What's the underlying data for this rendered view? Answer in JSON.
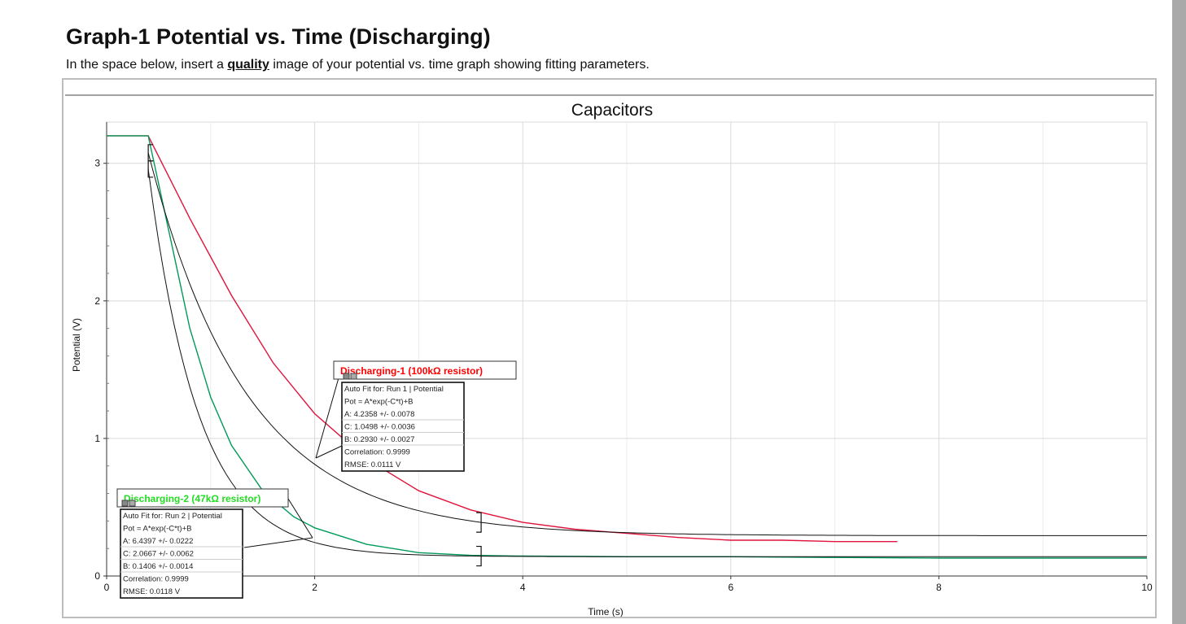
{
  "header": {
    "title": "Graph-1  Potential vs. Time (Discharging)",
    "instruction_before": "In the space below, insert a ",
    "instruction_bold": "quality",
    "instruction_after": " image of your potential vs. time graph showing fitting parameters."
  },
  "colors": {
    "run1": "#e0143c",
    "run2": "#009a5a",
    "fit": "#111111",
    "grid": "#d9d9d9",
    "label1": "#ff0000",
    "label2": "#22dd22",
    "sidebar": "#a9a9a9"
  },
  "chart_data": {
    "type": "line",
    "title": "Capacitors",
    "xlabel": "Time (s)",
    "ylabel": "Potential (V)",
    "xlim": [
      0,
      10
    ],
    "ylim": [
      0,
      3.3
    ],
    "x_ticks": [
      "0",
      "2",
      "4",
      "6",
      "8",
      "10"
    ],
    "y_ticks": [
      "0",
      "1",
      "2",
      "3"
    ],
    "grid": true,
    "series": [
      {
        "name": "Run 1",
        "x": [
          0.0,
          0.4,
          0.8,
          1.2,
          1.6,
          2.0,
          2.5,
          3.0,
          3.5,
          4.0,
          4.5,
          5.0,
          5.5,
          6.0,
          6.5,
          7.0,
          7.6
        ],
        "y": [
          3.2,
          3.2,
          2.6,
          2.04,
          1.55,
          1.18,
          0.85,
          0.62,
          0.48,
          0.39,
          0.34,
          0.31,
          0.28,
          0.26,
          0.26,
          0.25,
          0.25
        ]
      },
      {
        "name": "Run 2",
        "x": [
          0.0,
          0.4,
          0.6,
          0.8,
          1.0,
          1.2,
          1.5,
          1.8,
          2.0,
          2.5,
          3.0,
          3.5,
          4.0,
          5.0,
          6.0,
          7.0,
          8.0,
          9.0,
          10.0
        ],
        "y": [
          3.2,
          3.2,
          2.5,
          1.8,
          1.3,
          0.95,
          0.62,
          0.43,
          0.35,
          0.23,
          0.17,
          0.15,
          0.145,
          0.14,
          0.14,
          0.135,
          0.13,
          0.13,
          0.13
        ]
      }
    ],
    "fits": [
      {
        "label": "Discharging-1 (100kΩ resistor)",
        "run": "Run 1",
        "lines": [
          "Auto Fit for: Run 1 | Potential",
          "Pot = A*exp(-C*t)+B",
          "A: 4.2358 +/- 0.0078",
          "C: 1.0498 +/- 0.0036",
          "B: 0.2930 +/- 0.0027",
          "Correlation: 0.9999",
          "RMSE: 0.0111 V"
        ],
        "A": 4.2358,
        "C": 1.0498,
        "B": 0.293,
        "t0": 0.4,
        "t_end": 10,
        "bracket_start": 0.4,
        "bracket_end": 3.6
      },
      {
        "label": "Discharging-2 (47kΩ resistor)",
        "run": "Run 2",
        "lines": [
          "Auto Fit for: Run 2 | Potential",
          "Pot = A*exp(-C*t)+B",
          "A: 6.4397 +/- 0.0222",
          "C: 2.0667 +/- 0.0062",
          "B: 0.1406 +/- 0.0014",
          "Correlation: 0.9999",
          "RMSE: 0.0118 V"
        ],
        "A": 6.4397,
        "C": 2.0667,
        "B": 0.1406,
        "t0": 0.4,
        "t_end": 10,
        "bracket_start": 0.4,
        "bracket_end": 3.6
      }
    ]
  }
}
